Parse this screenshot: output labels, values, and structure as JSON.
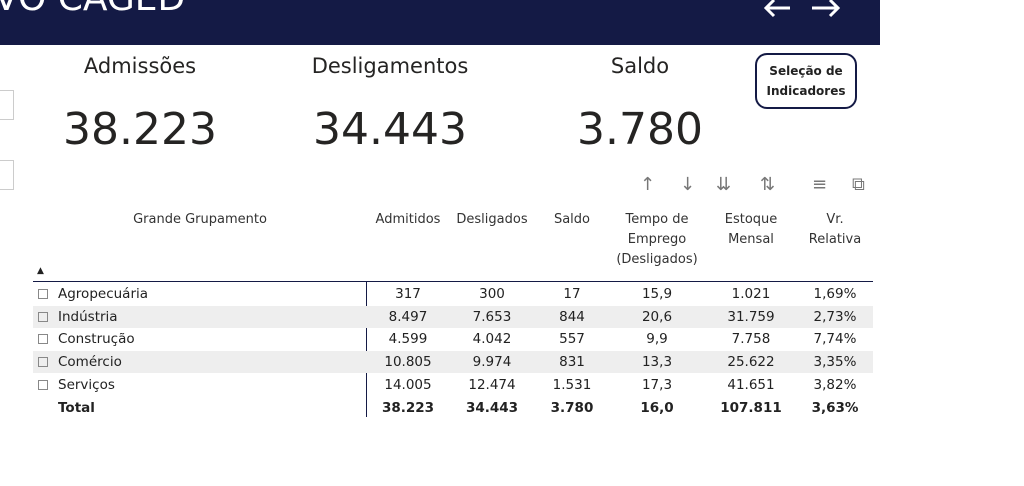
{
  "header": {
    "title": "VO CAGED"
  },
  "kpis": [
    {
      "label": "Admissões",
      "value": "38.223"
    },
    {
      "label": "Desligamentos",
      "value": "34.443"
    },
    {
      "label": "Saldo",
      "value": "3.780"
    }
  ],
  "button": {
    "label": "Seleção de Indicadores"
  },
  "table": {
    "columns": [
      "Grande Grupamento",
      "Admitidos",
      "Desligados",
      "Saldo",
      "Tempo de Emprego (Desligados)",
      "Estoque Mensal",
      "Vr. Relativa"
    ],
    "rows": [
      [
        "Agropecuária",
        "317",
        "300",
        "17",
        "15,9",
        "1.021",
        "1,69%"
      ],
      [
        "Indústria",
        "8.497",
        "7.653",
        "844",
        "20,6",
        "31.759",
        "2,73%"
      ],
      [
        "Construção",
        "4.599",
        "4.042",
        "557",
        "9,9",
        "7.758",
        "7,74%"
      ],
      [
        "Comércio",
        "10.805",
        "9.974",
        "831",
        "13,3",
        "25.622",
        "3,35%"
      ],
      [
        "Serviços",
        "14.005",
        "12.474",
        "1.531",
        "17,3",
        "41.651",
        "3,82%"
      ]
    ],
    "total": [
      "Total",
      "38.223",
      "34.443",
      "3.780",
      "16,0",
      "107.811",
      "3,63%"
    ]
  }
}
